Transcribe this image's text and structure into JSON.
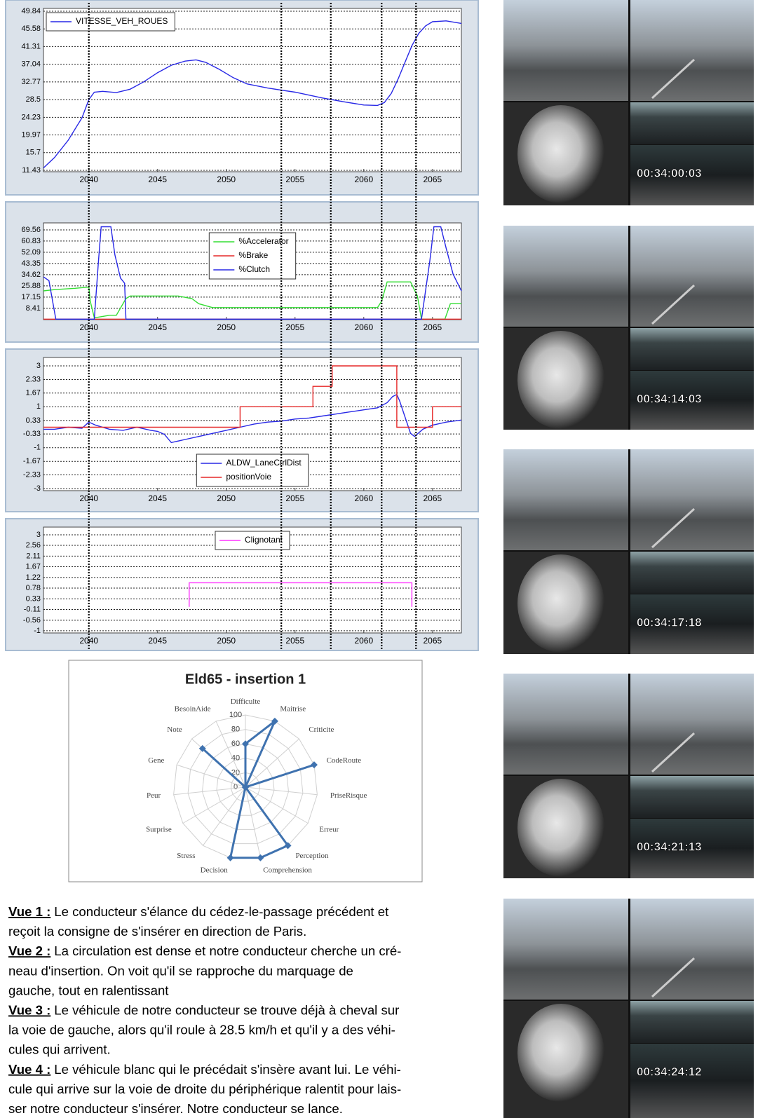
{
  "chart_data": [
    {
      "type": "line",
      "legend": "upper left",
      "grid": true,
      "xlim": [
        2036.7,
        2067.1
      ],
      "xticks": [
        2040,
        2045,
        2050,
        2055,
        2060,
        2065
      ],
      "ylim": [
        11.09,
        50.52
      ],
      "yticks": [
        11.43,
        15.7,
        19.97,
        24.23,
        28.5,
        32.77,
        37.04,
        41.31,
        45.58,
        49.84
      ],
      "vlines": [
        2040,
        2054,
        2057.6,
        2061.3,
        2063.8
      ],
      "series": [
        {
          "name": "VITESSE_VEH_ROUES",
          "color": "#2828e6",
          "x": [
            2036.7,
            2037.5,
            2038.5,
            2039.5,
            2040,
            2040.4,
            2041,
            2042,
            2043,
            2044,
            2045,
            2046,
            2047,
            2047.8,
            2048.5,
            2049.5,
            2050.5,
            2051.5,
            2053,
            2055,
            2057,
            2058.5,
            2060,
            2061,
            2061.5,
            2062,
            2062.5,
            2063,
            2063.5,
            2064,
            2064.5,
            2065,
            2066,
            2067.1
          ],
          "values": [
            12,
            14.5,
            18.7,
            24.1,
            28.5,
            30.3,
            30.5,
            30.2,
            31,
            32.8,
            35,
            36.8,
            37.8,
            38.1,
            37.5,
            35.8,
            33.8,
            32.3,
            31.3,
            30.3,
            28.9,
            28,
            27.2,
            27.1,
            27.8,
            30,
            33.5,
            37.5,
            41.5,
            44.5,
            46.3,
            47.3,
            47.5,
            46.9
          ]
        }
      ]
    },
    {
      "type": "line",
      "legend": "center",
      "grid": true,
      "xlim": [
        2036.7,
        2067.1
      ],
      "xticks": [
        2040,
        2045,
        2050,
        2055,
        2060,
        2065
      ],
      "ylim": [
        -0.4,
        75.0
      ],
      "yticks": [
        8.41,
        17.15,
        25.88,
        34.62,
        43.35,
        52.09,
        60.83,
        69.56
      ],
      "series": [
        {
          "name": "%Accelerator",
          "color": "#33dd33",
          "x": [
            2036.7,
            2037.5,
            2039,
            2040,
            2040.1,
            2040.4,
            2041.5,
            2042,
            2042.7,
            2043,
            2045,
            2046.5,
            2047.5,
            2048,
            2049,
            2055,
            2061,
            2061.3,
            2061.7,
            2063.4,
            2063.9,
            2064.2,
            2065.9,
            2066.3,
            2067.1
          ],
          "values": [
            22,
            23,
            24,
            25,
            14,
            1,
            3,
            3,
            16,
            18,
            18,
            18,
            16,
            12,
            9,
            9,
            9,
            14,
            29,
            29,
            18,
            0,
            0,
            12,
            12
          ]
        },
        {
          "name": "%Brake",
          "color": "#e62828",
          "x": [
            2036.7,
            2067.1
          ],
          "values": [
            0,
            0
          ]
        },
        {
          "name": "%Clutch",
          "color": "#2828e6",
          "x": [
            2036.7,
            2037.1,
            2037.6,
            2040.4,
            2040.7,
            2040.9,
            2041.6,
            2041.9,
            2042.3,
            2042.6,
            2042.7,
            2064.2,
            2064.8,
            2065.1,
            2065.6,
            2066.0,
            2066.5,
            2067.1
          ],
          "values": [
            33,
            30,
            0,
            0,
            45,
            72,
            72,
            50,
            32,
            28,
            0,
            0,
            45,
            72,
            72,
            55,
            35,
            22
          ]
        }
      ]
    },
    {
      "type": "line",
      "legend": "lower center",
      "grid": true,
      "xlim": [
        2036.7,
        2067.1
      ],
      "xticks": [
        2040,
        2045,
        2050,
        2055,
        2060,
        2065
      ],
      "ylim": [
        -3.1,
        3.41
      ],
      "yticks": [
        -3,
        -2.33,
        -1.67,
        -1,
        -0.33,
        0.33,
        1,
        1.67,
        2.33,
        3
      ],
      "series": [
        {
          "name": "ALDW_LaneCtrlDist",
          "color": "#2828e6",
          "x": [
            2036.7,
            2037.5,
            2038.5,
            2039.5,
            2040,
            2040.5,
            2041.5,
            2042.5,
            2043.5,
            2044.5,
            2045,
            2045.5,
            2046,
            2047,
            2048,
            2049,
            2050,
            2051,
            2052,
            2053,
            2054,
            2055,
            2056,
            2057,
            2058,
            2059,
            2060,
            2061,
            2061.7,
            2062.1,
            2062.4,
            2062.6,
            2063.4,
            2063.7,
            2064.3,
            2065,
            2066,
            2067.1
          ],
          "values": [
            -0.1,
            -0.1,
            0,
            -0.05,
            0.25,
            0.1,
            -0.1,
            -0.15,
            0,
            -0.15,
            -0.2,
            -0.35,
            -0.75,
            -0.6,
            -0.45,
            -0.3,
            -0.15,
            0,
            0.15,
            0.25,
            0.3,
            0.4,
            0.45,
            0.55,
            0.65,
            0.75,
            0.85,
            0.95,
            1.2,
            1.5,
            1.6,
            1.3,
            -0.3,
            -0.45,
            -0.1,
            0.1,
            0.25,
            0.35
          ]
        },
        {
          "name": "positionVoie",
          "color": "#e62828",
          "x": [
            2036.7,
            2051,
            2051,
            2056.3,
            2056.3,
            2057.7,
            2057.7,
            2062.4,
            2062.4,
            2065,
            2065,
            2067.1
          ],
          "values": [
            0,
            0,
            1,
            1,
            2,
            2,
            3,
            3,
            0,
            0,
            1,
            1
          ]
        }
      ]
    },
    {
      "type": "line",
      "legend": "upper center",
      "grid": true,
      "xlim": [
        2036.7,
        2067.1
      ],
      "xticks": [
        2040,
        2045,
        2050,
        2055,
        2060,
        2065
      ],
      "ylim": [
        -1.09,
        3.32
      ],
      "yticks": [
        -1,
        -0.56,
        -0.11,
        0.33,
        0.78,
        1.22,
        1.67,
        2.11,
        2.56,
        3
      ],
      "series": [
        {
          "name": "Clignotant",
          "color": "#ff33ff",
          "x": [
            2047.3,
            2047.3,
            2063.5,
            2063.5
          ],
          "values": [
            0,
            1,
            1,
            0
          ]
        }
      ]
    },
    {
      "type": "radar",
      "title": "Eld65 - insertion 1",
      "color": "#3f72af",
      "categories": [
        "Difficulte",
        "Maitrise",
        "Criticite",
        "CodeRoute",
        "PriseRisque",
        "Erreur",
        "Perception",
        "Comprehension",
        "Decision",
        "Stress",
        "Surprise",
        "Peur",
        "Gene",
        "Note",
        "BesoinAide"
      ],
      "values": [
        60,
        100,
        0,
        100,
        0,
        0,
        100,
        100,
        100,
        0,
        0,
        0,
        0,
        80,
        0
      ],
      "ylim": [
        0,
        100
      ],
      "yticks": [
        0,
        20,
        40,
        60,
        80,
        100
      ]
    }
  ],
  "notes": [
    {
      "label": "Vue 1 :",
      "lines": [
        "Le conducteur s'élance du cédez-le-passage précédent et",
        "reçoit la consigne de s'insérer en direction de Paris."
      ]
    },
    {
      "label": "Vue 2 :",
      "lines": [
        "La circulation est dense et notre conducteur cherche un cré-",
        "neau d'insertion. On voit qu'il se rapproche du marquage de",
        "gauche, tout en ralentissant"
      ]
    },
    {
      "label": "Vue 3 :",
      "lines": [
        "Le véhicule de notre conducteur se trouve déjà à cheval sur",
        "la voie de gauche, alors qu'il roule à 28.5 km/h et qu'il y a des véhi-",
        "cules qui arrivent."
      ]
    },
    {
      "label": "Vue 4 :",
      "lines": [
        "Le véhicule blanc qui le précédait s'insère avant lui. Le véhi-",
        "cule qui arrive sur la voie de droite du périphérique ralentit pour lais-",
        "ser notre conducteur s'insérer. Notre conducteur se lance."
      ]
    }
  ],
  "video_frames": [
    {
      "timestamp": "00:34:00:03"
    },
    {
      "timestamp": "00:34:14:03"
    },
    {
      "timestamp": "00:34:17:18"
    },
    {
      "timestamp": "00:34:21:13"
    },
    {
      "timestamp": "00:34:24:12"
    }
  ]
}
